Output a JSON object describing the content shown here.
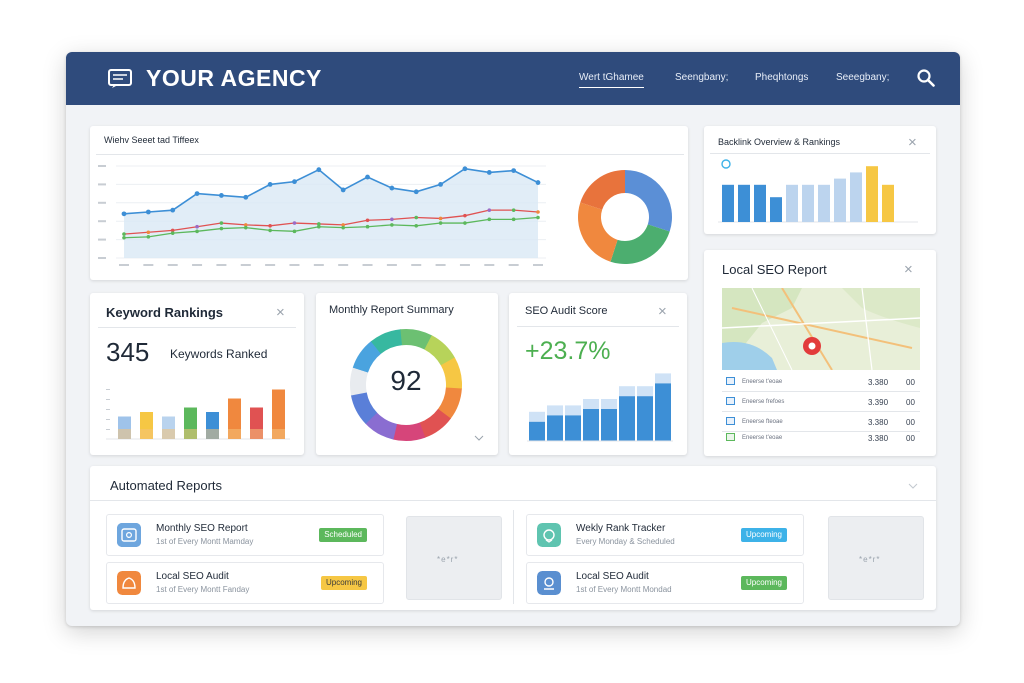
{
  "header": {
    "brand": "YOUR AGENCY",
    "nav": [
      "Wert tGhamee",
      "Seengbany;",
      "Pheqhtongs",
      "Seeegbany;"
    ],
    "active_nav_index": 0
  },
  "traffic_card": {
    "title": "Wiehv Seeet tad Tiffeex"
  },
  "backlink_card": {
    "title": "Backlink Overview & Rankings"
  },
  "keyword_card": {
    "title": "Keyword Rankings",
    "value": "345",
    "label": "Keywords Ranked"
  },
  "summary_card": {
    "title": "Monthly Report Summary",
    "score": "92"
  },
  "audit_card": {
    "title": "SEO Audit Score",
    "value": "+23.7%"
  },
  "local_card": {
    "title": "Local SEO Report",
    "rows": [
      {
        "label": "Eneerse t'eoae",
        "v1": "3.380",
        "v2": "00"
      },
      {
        "label": "Eneerse frefoes",
        "v1": "3.390",
        "v2": "00"
      },
      {
        "label": "Eneerse fteoae",
        "v1": "3.380",
        "v2": "00"
      },
      {
        "label": "Eneerse t'eoae",
        "v1": "3.380",
        "v2": "00"
      }
    ]
  },
  "automated": {
    "title": "Automated Reports",
    "items": [
      {
        "title": "Monthly SEO Report",
        "sub": "1st of Every Montt Mamday",
        "badge": "Scheduled"
      },
      {
        "title": "Local SEO Audit",
        "sub": "1st of Every Montt Fanday",
        "badge": "Upcoming"
      },
      {
        "title": "Wekly Rank Tracker",
        "sub": "Every Monday & Scheduled",
        "badge": "Upcoming"
      },
      {
        "title": "Local SEO Audit",
        "sub": "1st of Every Montt Mondad",
        "badge": "Upcoming"
      }
    ],
    "placeholder_text": "*e*r*"
  },
  "colors": {
    "header_bg": "#2f4b7c",
    "blue": "#3d8fd6",
    "green": "#5cb85c",
    "orange": "#f0883e",
    "yellow": "#f6c744",
    "red": "#e05252",
    "purple": "#9b6cc6"
  },
  "chart_data": [
    {
      "type": "line",
      "title": "Wiehv Seeet tad Tiffeex",
      "series": [
        {
          "values": [
            48,
            50,
            52,
            70,
            68,
            66,
            80,
            83,
            96,
            74,
            88,
            76,
            72,
            80,
            97,
            93,
            95,
            82
          ]
        },
        {
          "values": [
            26,
            28,
            30,
            34,
            38,
            36,
            35,
            38,
            37,
            36,
            41,
            42,
            44,
            43,
            46,
            52,
            52,
            50
          ]
        },
        {
          "values": [
            22,
            23,
            27,
            29,
            32,
            33,
            30,
            29,
            34,
            33,
            34,
            36,
            35,
            38,
            38,
            42,
            42,
            44
          ]
        }
      ]
    },
    {
      "type": "pie",
      "values": [
        30,
        25,
        25,
        20
      ]
    },
    {
      "type": "bar",
      "title": "Backlink Overview & Rankings",
      "values": [
        6,
        6,
        6,
        4,
        6,
        6,
        6,
        7,
        8,
        9,
        6
      ]
    },
    {
      "type": "bar",
      "title": "Keyword Rankings",
      "values": [
        5,
        6,
        5,
        7,
        6,
        9,
        7,
        11
      ]
    },
    {
      "type": "pie",
      "title": "Monthly Report Summary",
      "values": [
        92,
        8
      ]
    },
    {
      "type": "bar",
      "title": "SEO Audit Score",
      "values": [
        3,
        4,
        4,
        5,
        5,
        7,
        7,
        9
      ]
    }
  ]
}
